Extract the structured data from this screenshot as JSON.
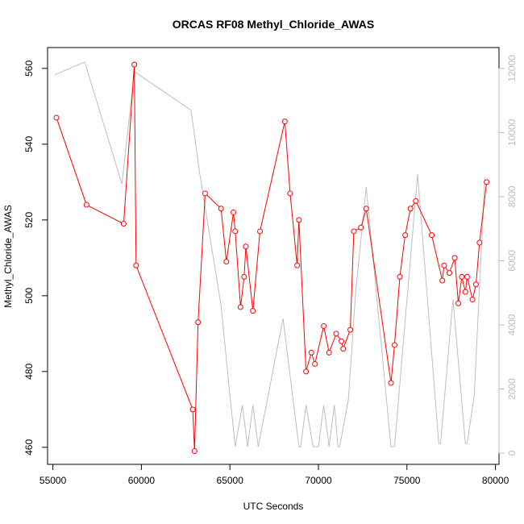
{
  "chart_data": {
    "type": "line",
    "title": "ORCAS RF08 Methyl_Chloride_AWAS",
    "xlabel": "UTC Seconds",
    "ylabel": "Methyl_Chloride_AWAS",
    "xlim": [
      54700,
      80200
    ],
    "ylim": [
      455.5,
      565.5
    ],
    "y2lim": [
      -350,
      12650
    ],
    "xticks": [
      55000,
      60000,
      65000,
      70000,
      75000,
      80000
    ],
    "yticks": [
      460,
      480,
      500,
      520,
      540,
      560
    ],
    "y2ticks": [
      0,
      2000,
      4000,
      6000,
      8000,
      10000,
      12000
    ],
    "grid": false,
    "legend": "none",
    "colors": {
      "primary": "#ff0000",
      "secondary": "#bebebe",
      "axis": "#000000",
      "right_axis": "#bdbdbd"
    },
    "series": [
      {
        "axis": "left",
        "style": "line-with-open-circles",
        "x": [
          55200,
          56900,
          59000,
          59600,
          59700,
          62900,
          63000,
          63200,
          63600,
          64500,
          64800,
          65200,
          65300,
          65600,
          65800,
          65900,
          66300,
          66700,
          68100,
          68400,
          68800,
          68900,
          69300,
          69600,
          69800,
          70300,
          70600,
          71000,
          71300,
          71400,
          71800,
          72000,
          72400,
          72700,
          74100,
          74300,
          74600,
          74900,
          75200,
          75500,
          76400,
          77000,
          77100,
          77400,
          77700,
          77900,
          78100,
          78300,
          78400,
          78700,
          78900,
          79100,
          79500
        ],
        "y": [
          547,
          524,
          519,
          561,
          508,
          470,
          459,
          493,
          527,
          523,
          509,
          522,
          517,
          497,
          505,
          513,
          496,
          517,
          546,
          527,
          508,
          520,
          480,
          485,
          482,
          492,
          485,
          490,
          488,
          486,
          491,
          517,
          518,
          523,
          477,
          487,
          505,
          516,
          523,
          525,
          516,
          504,
          508,
          506,
          510,
          498,
          505,
          501,
          505,
          499,
          503,
          514,
          530
        ]
      },
      {
        "axis": "right",
        "style": "line",
        "x": [
          55100,
          56800,
          58900,
          59600,
          62800,
          63300,
          64500,
          65000,
          65300,
          65700,
          66000,
          66300,
          66600,
          68000,
          68900,
          69000,
          69300,
          69700,
          70000,
          70300,
          70600,
          70900,
          71100,
          71200,
          71700,
          72100,
          72700,
          74100,
          74300,
          75600,
          76800,
          76900,
          77600,
          78300,
          78400,
          78800,
          79400
        ],
        "y": [
          11800,
          12200,
          8400,
          11900,
          10700,
          8700,
          4600,
          1800,
          200,
          1500,
          200,
          1500,
          200,
          4200,
          200,
          200,
          1500,
          200,
          200,
          1500,
          200,
          1500,
          200,
          200,
          1700,
          5000,
          8300,
          200,
          200,
          8700,
          300,
          300,
          4800,
          300,
          300,
          1800,
          8600
        ]
      }
    ]
  }
}
